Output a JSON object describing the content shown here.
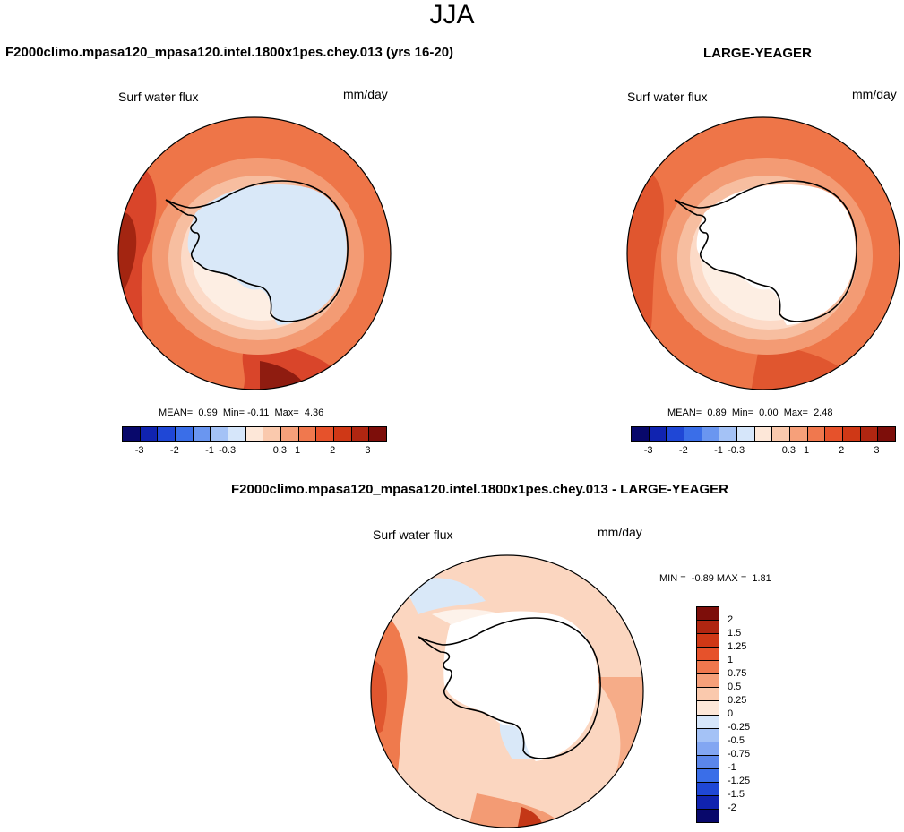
{
  "figure": {
    "season": "JJA",
    "panel_top_left": {
      "title": "F2000climo.mpasa120_mpasa120.intel.1800x1pes.chey.013 (yrs 16-20)",
      "variable": "Surf water flux",
      "units": "mm/day",
      "stats": {
        "mean_label": "MEAN=",
        "mean": "0.99",
        "min_label": "Min=",
        "min": "-0.11",
        "max_label": "Max=",
        "max": "4.36"
      }
    },
    "panel_top_right": {
      "title": "LARGE-YEAGER",
      "variable": "Surf water flux",
      "units": "mm/day",
      "stats": {
        "mean_label": "MEAN=",
        "mean": "0.89",
        "min_label": "Min=",
        "min": "0.00",
        "max_label": "Max=",
        "max": "2.48"
      }
    },
    "panel_bottom": {
      "title": "F2000climo.mpasa120_mpasa120.intel.1800x1pes.chey.013 - LARGE-YEAGER",
      "variable": "Surf water flux",
      "units": "mm/day",
      "stats": {
        "min_label": "MIN =",
        "min": "-0.89",
        "max_label": "MAX =",
        "max": "1.81"
      }
    },
    "colorbar_top": {
      "colors": [
        "#08086b",
        "#1023b0",
        "#1f47d6",
        "#3a6ee8",
        "#6a96f0",
        "#a4c2f6",
        "#d6e6fa",
        "#fde7d8",
        "#fac9ad",
        "#f6a07a",
        "#f0784e",
        "#e6522b",
        "#cf3816",
        "#b02611",
        "#7d0e0a"
      ],
      "tick_labels": [
        "-3",
        "-2",
        "-1",
        "-0.3",
        "0.3",
        "1",
        "2",
        "3"
      ]
    },
    "colorbar_bottom": {
      "colors": [
        "#7d0e0a",
        "#b02611",
        "#cf3816",
        "#e6522b",
        "#f0784e",
        "#f6a07a",
        "#fac9ad",
        "#fde7d8",
        "#d6e6fa",
        "#a4c2f6",
        "#82a6f2",
        "#5b86ea",
        "#3a6ee8",
        "#1f47d6",
        "#1023b0",
        "#08086b"
      ],
      "tick_labels": [
        "2",
        "1.5",
        "1.25",
        "1",
        "0.75",
        "0.5",
        "0.25",
        "0",
        "-0.25",
        "-0.5",
        "-0.75",
        "-1",
        "-1.25",
        "-1.5",
        "-2"
      ]
    }
  }
}
